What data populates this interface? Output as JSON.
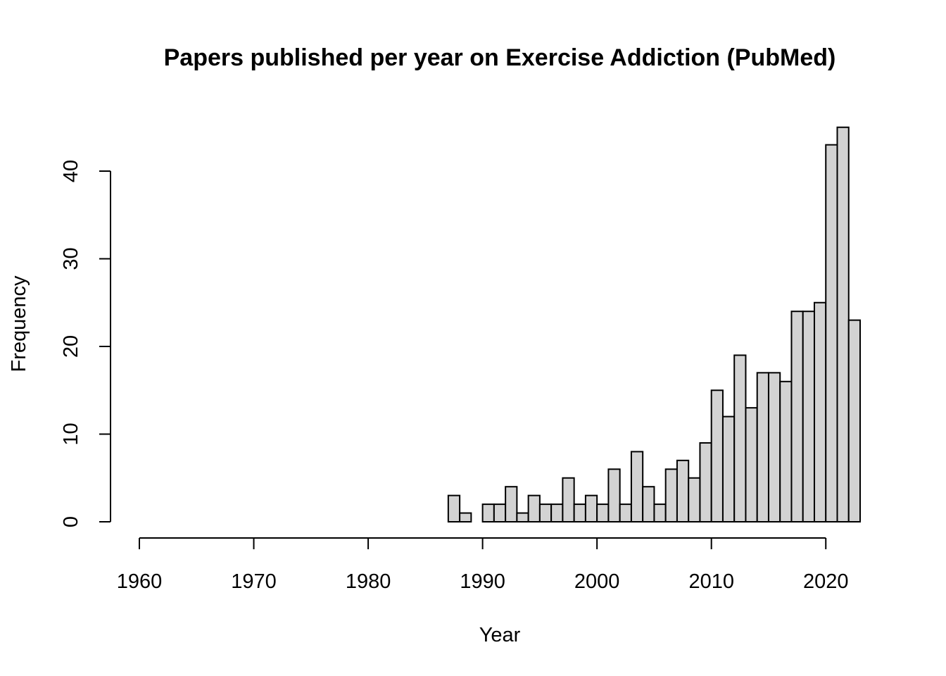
{
  "chart_data": {
    "type": "bar",
    "title": "Papers published per year on Exercise Addiction (PubMed)",
    "xlabel": "Year",
    "ylabel": "Frequency",
    "bar_color": "#d3d3d3",
    "edge_color": "#000000",
    "xlim": [
      1960,
      2023
    ],
    "ylim": [
      0,
      45
    ],
    "x_ticks": [
      1960,
      1970,
      1980,
      1990,
      2000,
      2010,
      2020
    ],
    "y_ticks": [
      0,
      10,
      20,
      30,
      40
    ],
    "bin_width": 1,
    "bins": [
      {
        "x": 1987,
        "value": 3
      },
      {
        "x": 1988,
        "value": 1
      },
      {
        "x": 1989,
        "value": 0
      },
      {
        "x": 1990,
        "value": 2
      },
      {
        "x": 1991,
        "value": 2
      },
      {
        "x": 1992,
        "value": 4
      },
      {
        "x": 1993,
        "value": 1
      },
      {
        "x": 1994,
        "value": 3
      },
      {
        "x": 1995,
        "value": 2
      },
      {
        "x": 1996,
        "value": 2
      },
      {
        "x": 1997,
        "value": 5
      },
      {
        "x": 1998,
        "value": 2
      },
      {
        "x": 1999,
        "value": 3
      },
      {
        "x": 2000,
        "value": 2
      },
      {
        "x": 2001,
        "value": 6
      },
      {
        "x": 2002,
        "value": 2
      },
      {
        "x": 2003,
        "value": 8
      },
      {
        "x": 2004,
        "value": 4
      },
      {
        "x": 2005,
        "value": 2
      },
      {
        "x": 2006,
        "value": 6
      },
      {
        "x": 2007,
        "value": 7
      },
      {
        "x": 2008,
        "value": 5
      },
      {
        "x": 2009,
        "value": 9
      },
      {
        "x": 2010,
        "value": 15
      },
      {
        "x": 2011,
        "value": 12
      },
      {
        "x": 2012,
        "value": 19
      },
      {
        "x": 2013,
        "value": 13
      },
      {
        "x": 2014,
        "value": 17
      },
      {
        "x": 2015,
        "value": 17
      },
      {
        "x": 2016,
        "value": 16
      },
      {
        "x": 2017,
        "value": 24
      },
      {
        "x": 2018,
        "value": 24
      },
      {
        "x": 2019,
        "value": 25
      },
      {
        "x": 2020,
        "value": 43
      },
      {
        "x": 2021,
        "value": 45
      },
      {
        "x": 2022,
        "value": 23
      }
    ]
  }
}
